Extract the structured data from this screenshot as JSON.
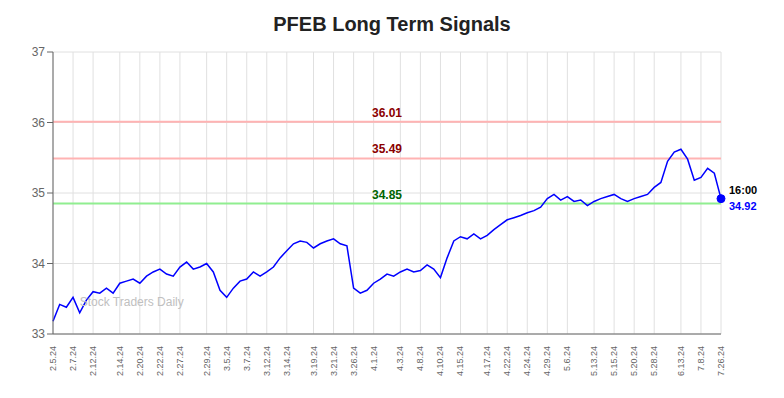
{
  "chart_data": {
    "type": "line",
    "title": "PFEB Long Term Signals",
    "categories": [
      "2.5.24",
      null,
      null,
      "2.7.24",
      null,
      null,
      "2.12.24",
      null,
      null,
      null,
      "2.14.24",
      null,
      null,
      "2.20.24",
      null,
      null,
      "2.22.24",
      null,
      null,
      "2.27.24",
      null,
      null,
      null,
      "2.29.24",
      null,
      null,
      "3.5.24",
      null,
      null,
      "3.7.24",
      null,
      null,
      "3.12.24",
      null,
      null,
      "3.14.24",
      null,
      null,
      null,
      "3.19.24",
      null,
      null,
      "3.21.24",
      null,
      null,
      "3.26.24",
      null,
      null,
      "4.1.24",
      null,
      null,
      null,
      "4.3.24",
      null,
      null,
      "4.8.24",
      null,
      null,
      "4.10.24",
      null,
      null,
      "4.15.24",
      null,
      null,
      null,
      "4.17.24",
      null,
      null,
      "4.22.24",
      null,
      null,
      "4.24.24",
      null,
      null,
      "4.29.24",
      null,
      null,
      "5.6.24",
      null,
      null,
      null,
      "5.13.24",
      null,
      null,
      "5.15.24",
      null,
      null,
      "5.20.24",
      null,
      null,
      "5.28.24",
      null,
      null,
      null,
      "6.13.24",
      null,
      null,
      "7.8.24",
      null,
      null,
      "7.26.24"
    ],
    "values": [
      33.18,
      33.42,
      33.38,
      33.52,
      33.3,
      33.48,
      33.6,
      33.58,
      33.65,
      33.58,
      33.72,
      33.75,
      33.78,
      33.72,
      33.82,
      33.88,
      33.92,
      33.85,
      33.82,
      33.95,
      34.02,
      33.92,
      33.95,
      34.0,
      33.88,
      33.62,
      33.52,
      33.65,
      33.75,
      33.78,
      33.88,
      33.82,
      33.88,
      33.95,
      34.08,
      34.18,
      34.28,
      34.32,
      34.3,
      34.22,
      34.28,
      34.32,
      34.35,
      34.28,
      34.25,
      33.65,
      33.58,
      33.62,
      33.72,
      33.78,
      33.85,
      33.82,
      33.88,
      33.92,
      33.88,
      33.9,
      33.98,
      33.92,
      33.8,
      34.08,
      34.32,
      34.38,
      34.35,
      34.42,
      34.35,
      34.4,
      34.48,
      34.55,
      34.62,
      34.65,
      34.68,
      34.72,
      34.75,
      34.8,
      34.92,
      34.98,
      34.9,
      34.95,
      34.88,
      34.9,
      34.82,
      34.88,
      34.92,
      34.95,
      34.98,
      34.92,
      34.88,
      34.92,
      34.95,
      34.98,
      35.08,
      35.15,
      35.45,
      35.58,
      35.62,
      35.48,
      35.18,
      35.22,
      35.35,
      35.28,
      34.92
    ],
    "color": "blue",
    "ylim": [
      33,
      37
    ],
    "yticks": [
      33,
      34,
      35,
      36,
      37
    ],
    "grid": true,
    "reference_lines": [
      {
        "value": 36.01,
        "label": "36.01",
        "color": "#ffb3b3",
        "label_color": "#8b0000"
      },
      {
        "value": 35.49,
        "label": "35.49",
        "color": "#ffb3b3",
        "label_color": "#8b0000"
      },
      {
        "value": 34.85,
        "label": "34.85",
        "color": "#90ee90",
        "label_color": "#006400"
      }
    ],
    "end_labels": [
      {
        "text": "16:00",
        "color": "black"
      },
      {
        "text": "34.92",
        "color": "blue"
      }
    ],
    "watermark": {
      "text": "Stock Traders Daily",
      "color": "#c0c0c0"
    }
  }
}
